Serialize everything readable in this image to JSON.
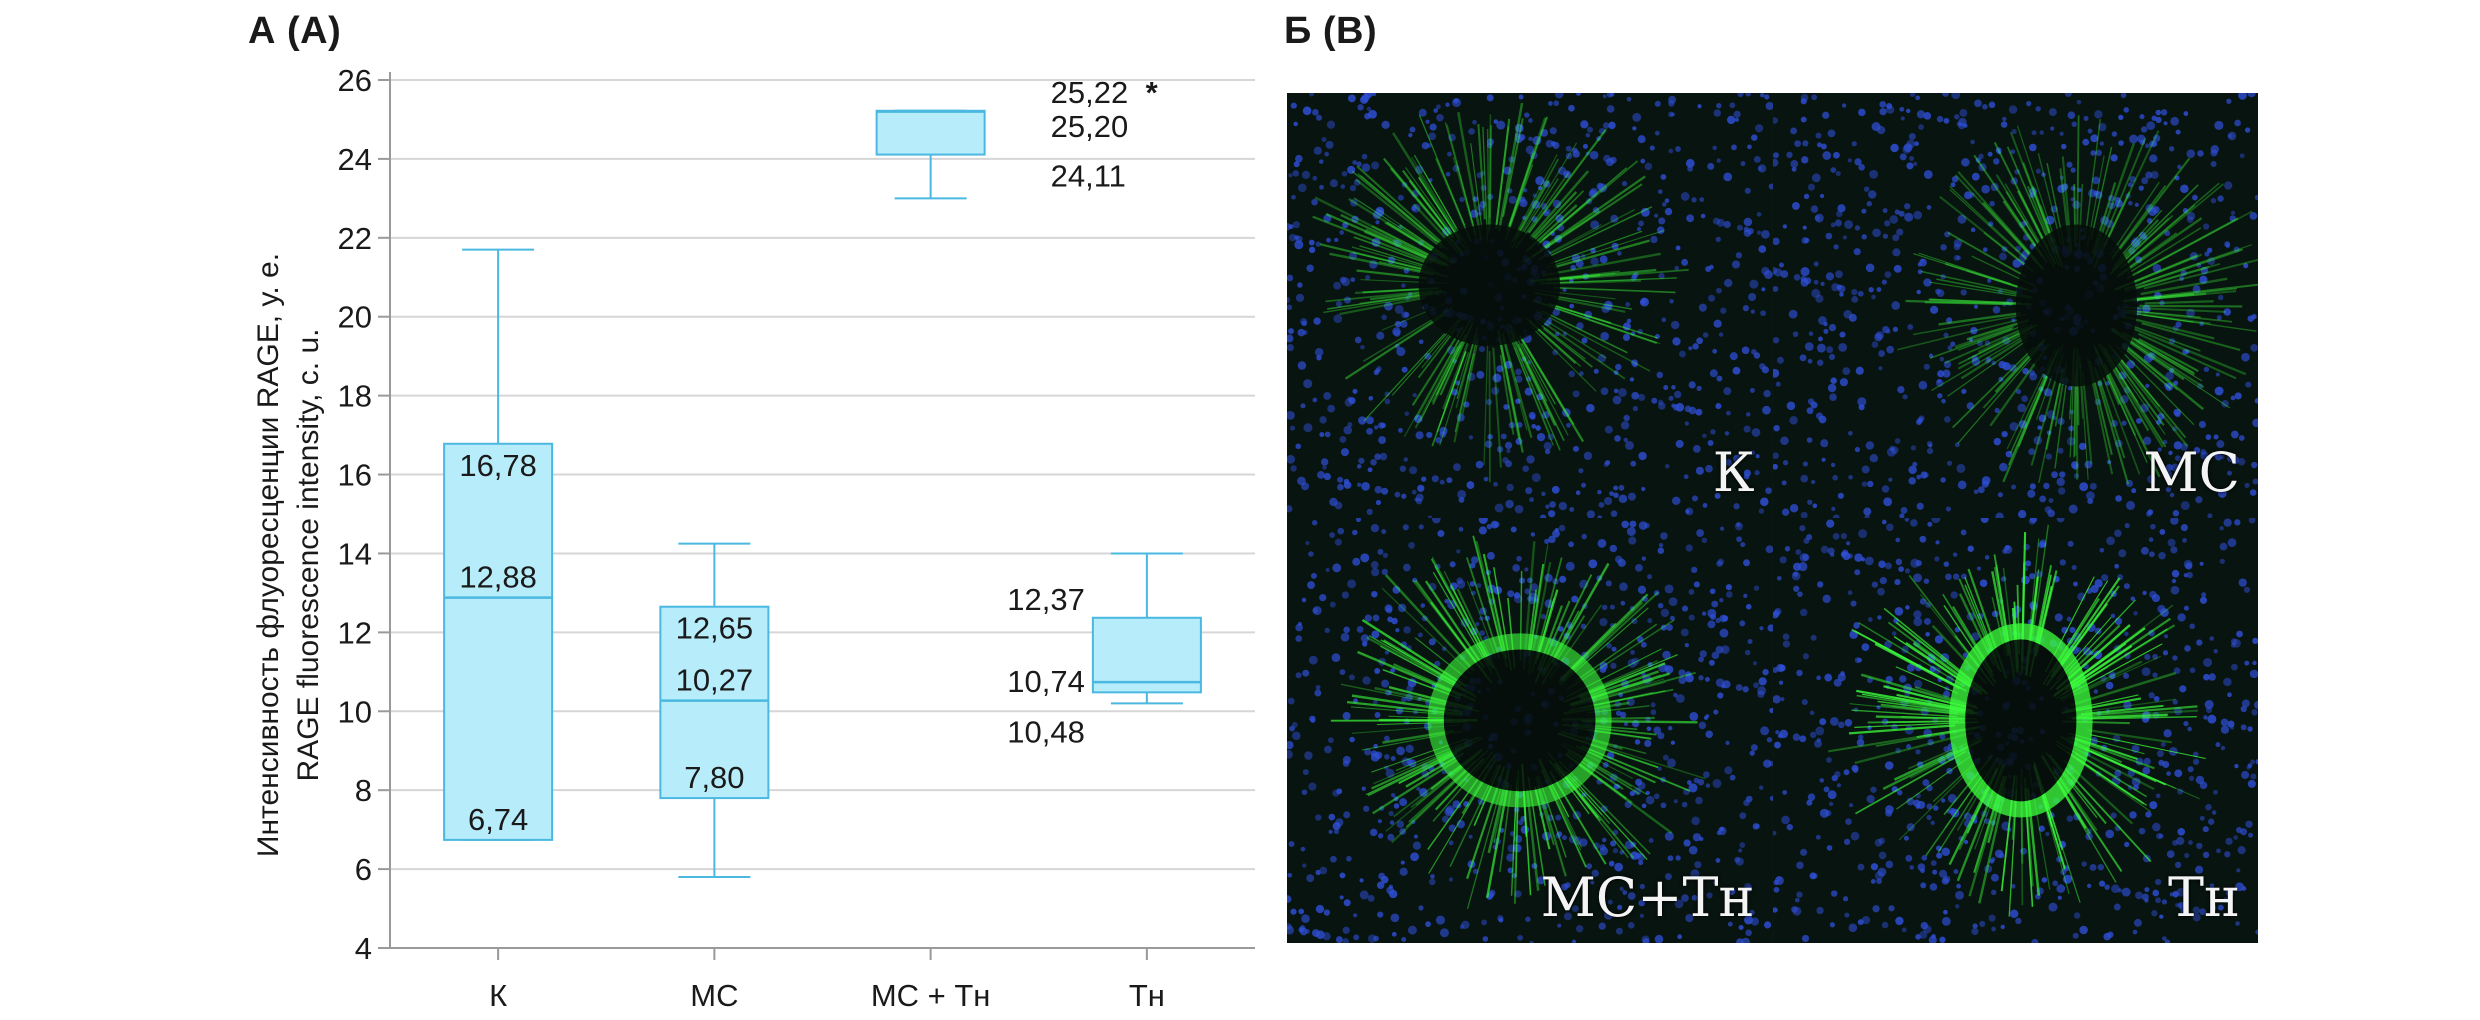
{
  "panel_a_label": "А (А)",
  "panel_b_label": "Б (B)",
  "chart_data": {
    "type": "box",
    "ylabel": [
      "Интенсивность флуоресценции RAGE, у. е.",
      "RAGE fluorescence intensity, c. u."
    ],
    "ylim": [
      4,
      26
    ],
    "yticks": [
      4,
      6,
      8,
      10,
      12,
      14,
      16,
      18,
      20,
      22,
      24,
      26
    ],
    "grid": true,
    "categories": [
      "К",
      "МС",
      "МС + Тн",
      "Тн"
    ],
    "boxes": [
      {
        "category": "К",
        "min": 6.74,
        "q1": 6.74,
        "median": 12.88,
        "q3": 16.78,
        "max": 21.7,
        "labels": [
          "16,78",
          "12,88",
          "6,74"
        ],
        "annotation": ""
      },
      {
        "category": "МС",
        "min": 5.8,
        "q1": 7.8,
        "median": 10.27,
        "q3": 12.65,
        "max": 14.25,
        "labels": [
          "12,65",
          "10,27",
          "7,80"
        ],
        "annotation": ""
      },
      {
        "category": "МС + Тн",
        "min": 23.0,
        "q1": 24.11,
        "median": 25.2,
        "q3": 25.22,
        "max": 25.22,
        "labels": [
          "25,22",
          "25,20",
          "24,11"
        ],
        "annotation": "*"
      },
      {
        "category": "Тн",
        "min": 10.2,
        "q1": 10.48,
        "median": 10.74,
        "q3": 12.37,
        "max": 14.0,
        "labels": [
          "12,37",
          "10,74",
          "10,48"
        ],
        "annotation": ""
      }
    ]
  },
  "micrographs": [
    {
      "label": "К",
      "accent": "#3cff3c"
    },
    {
      "label": "МС",
      "accent": "#3cff3c"
    },
    {
      "label": "МС+Тн",
      "accent": "#3cff3c"
    },
    {
      "label": "Тн",
      "accent": "#3cff3c"
    }
  ],
  "colors": {
    "box_fill": "#b7ecfb",
    "box_stroke": "#4ab8e0",
    "grid": "#d6d6d6",
    "nuclei": "#2f4fd8",
    "fluor": "#3cff3c"
  }
}
